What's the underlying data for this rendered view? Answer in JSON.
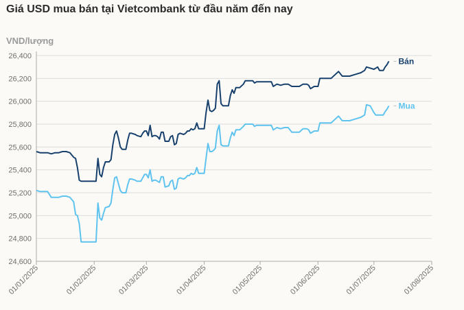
{
  "title": "Giá USD mua bán tại Vietcombank từ đầu năm đến nay",
  "colors": {
    "ban": "#17406d",
    "mua": "#5ec3ef",
    "grid": "#dcdcdc",
    "axis": "#aaaaaa"
  },
  "chart_data": {
    "type": "line",
    "title": "Giá USD mua bán tại Vietcombank từ đầu năm đến nay",
    "ylabel": "VND/lượng",
    "xlabel": "",
    "ylim": [
      24600,
      26400
    ],
    "yticks": [
      "24,600",
      "24,800",
      "25,000",
      "25,200",
      "25,400",
      "25,600",
      "25,800",
      "26,000",
      "26,200",
      "26,400"
    ],
    "xticks": [
      "01/01/2025",
      "01/02/2025",
      "01/03/2025",
      "01/04/2025",
      "01/05/2025",
      "01/06/2025",
      "01/07/2025",
      "01/08/2025"
    ],
    "grid": "horizontal",
    "series": [
      {
        "name": "Bán",
        "color": "#17406d",
        "points": [
          [
            "2025-01-01",
            25560
          ],
          [
            "2025-01-03",
            25550
          ],
          [
            "2025-01-05",
            25550
          ],
          [
            "2025-01-07",
            25550
          ],
          [
            "2025-01-09",
            25540
          ],
          [
            "2025-01-11",
            25550
          ],
          [
            "2025-01-13",
            25550
          ],
          [
            "2025-01-15",
            25560
          ],
          [
            "2025-01-17",
            25560
          ],
          [
            "2025-01-19",
            25550
          ],
          [
            "2025-01-21",
            25510
          ],
          [
            "2025-01-22",
            25500
          ],
          [
            "2025-01-23",
            25420
          ],
          [
            "2025-01-24",
            25310
          ],
          [
            "2025-01-25",
            25300
          ],
          [
            "2025-01-27",
            25300
          ],
          [
            "2025-01-29",
            25300
          ],
          [
            "2025-02-01",
            25300
          ],
          [
            "2025-02-02",
            25300
          ],
          [
            "2025-02-03",
            25500
          ],
          [
            "2025-02-04",
            25360
          ],
          [
            "2025-02-05",
            25340
          ],
          [
            "2025-02-06",
            25420
          ],
          [
            "2025-02-07",
            25470
          ],
          [
            "2025-02-09",
            25470
          ],
          [
            "2025-02-10",
            25490
          ],
          [
            "2025-02-11",
            25620
          ],
          [
            "2025-02-12",
            25710
          ],
          [
            "2025-02-13",
            25740
          ],
          [
            "2025-02-14",
            25680
          ],
          [
            "2025-02-15",
            25600
          ],
          [
            "2025-02-16",
            25580
          ],
          [
            "2025-02-18",
            25580
          ],
          [
            "2025-02-19",
            25660
          ],
          [
            "2025-02-20",
            25720
          ],
          [
            "2025-02-21",
            25720
          ],
          [
            "2025-02-23",
            25710
          ],
          [
            "2025-02-24",
            25700
          ],
          [
            "2025-02-26",
            25690
          ],
          [
            "2025-02-27",
            25720
          ],
          [
            "2025-02-28",
            25740
          ],
          [
            "2025-03-01",
            25740
          ],
          [
            "2025-03-02",
            25700
          ],
          [
            "2025-03-03",
            25790
          ],
          [
            "2025-03-04",
            25690
          ],
          [
            "2025-03-05",
            25700
          ],
          [
            "2025-03-06",
            25700
          ],
          [
            "2025-03-07",
            25690
          ],
          [
            "2025-03-08",
            25670
          ],
          [
            "2025-03-09",
            25730
          ],
          [
            "2025-03-10",
            25730
          ],
          [
            "2025-03-11",
            25650
          ],
          [
            "2025-03-13",
            25650
          ],
          [
            "2025-03-14",
            25690
          ],
          [
            "2025-03-15",
            25700
          ],
          [
            "2025-03-16",
            25620
          ],
          [
            "2025-03-17",
            25630
          ],
          [
            "2025-03-18",
            25710
          ],
          [
            "2025-03-19",
            25720
          ],
          [
            "2025-03-21",
            25710
          ],
          [
            "2025-03-22",
            25720
          ],
          [
            "2025-03-23",
            25740
          ],
          [
            "2025-03-24",
            25740
          ],
          [
            "2025-03-25",
            25760
          ],
          [
            "2025-03-26",
            25750
          ],
          [
            "2025-03-27",
            25760
          ],
          [
            "2025-03-28",
            25810
          ],
          [
            "2025-03-29",
            25760
          ],
          [
            "2025-03-30",
            25760
          ],
          [
            "2025-03-31",
            25760
          ],
          [
            "2025-04-01",
            25760
          ],
          [
            "2025-04-02",
            25900
          ],
          [
            "2025-04-03",
            26010
          ],
          [
            "2025-04-04",
            25920
          ],
          [
            "2025-04-05",
            25910
          ],
          [
            "2025-04-06",
            25920
          ],
          [
            "2025-04-07",
            25940
          ],
          [
            "2025-04-08",
            26150
          ],
          [
            "2025-04-09",
            26180
          ],
          [
            "2025-04-10",
            25980
          ],
          [
            "2025-04-11",
            25960
          ],
          [
            "2025-04-13",
            25960
          ],
          [
            "2025-04-14",
            25960
          ],
          [
            "2025-04-15",
            26050
          ],
          [
            "2025-04-16",
            26100
          ],
          [
            "2025-04-17",
            26070
          ],
          [
            "2025-04-18",
            26120
          ],
          [
            "2025-04-20",
            26120
          ],
          [
            "2025-04-22",
            26150
          ],
          [
            "2025-04-23",
            26180
          ],
          [
            "2025-04-24",
            26180
          ],
          [
            "2025-04-27",
            26180
          ],
          [
            "2025-04-28",
            26160
          ],
          [
            "2025-04-29",
            26170
          ],
          [
            "2025-05-01",
            26170
          ],
          [
            "2025-05-05",
            26170
          ],
          [
            "2025-05-07",
            26170
          ],
          [
            "2025-05-08",
            26130
          ],
          [
            "2025-05-09",
            26140
          ],
          [
            "2025-05-10",
            26150
          ],
          [
            "2025-05-12",
            26140
          ],
          [
            "2025-05-14",
            26150
          ],
          [
            "2025-05-16",
            26150
          ],
          [
            "2025-05-18",
            26130
          ],
          [
            "2025-05-20",
            26130
          ],
          [
            "2025-05-22",
            26130
          ],
          [
            "2025-05-24",
            26150
          ],
          [
            "2025-05-26",
            26150
          ],
          [
            "2025-05-27",
            26140
          ],
          [
            "2025-05-28",
            26110
          ],
          [
            "2025-05-30",
            26130
          ],
          [
            "2025-06-01",
            26130
          ],
          [
            "2025-06-02",
            26200
          ],
          [
            "2025-06-05",
            26200
          ],
          [
            "2025-06-08",
            26200
          ],
          [
            "2025-06-10",
            26230
          ],
          [
            "2025-06-12",
            26260
          ],
          [
            "2025-06-14",
            26220
          ],
          [
            "2025-06-16",
            26220
          ],
          [
            "2025-06-18",
            26220
          ],
          [
            "2025-06-20",
            26230
          ],
          [
            "2025-06-22",
            26240
          ],
          [
            "2025-06-24",
            26250
          ],
          [
            "2025-06-26",
            26270
          ],
          [
            "2025-06-27",
            26300
          ],
          [
            "2025-06-29",
            26290
          ],
          [
            "2025-07-01",
            26280
          ],
          [
            "2025-07-02",
            26290
          ],
          [
            "2025-07-03",
            26300
          ],
          [
            "2025-07-04",
            26270
          ],
          [
            "2025-07-06",
            26270
          ],
          [
            "2025-07-07",
            26300
          ],
          [
            "2025-07-08",
            26320
          ],
          [
            "2025-07-09",
            26350
          ]
        ]
      },
      {
        "name": "Mua",
        "color": "#5ec3ef",
        "points": [
          [
            "2025-01-01",
            25220
          ],
          [
            "2025-01-03",
            25210
          ],
          [
            "2025-01-05",
            25210
          ],
          [
            "2025-01-07",
            25210
          ],
          [
            "2025-01-09",
            25160
          ],
          [
            "2025-01-11",
            25160
          ],
          [
            "2025-01-13",
            25160
          ],
          [
            "2025-01-15",
            25170
          ],
          [
            "2025-01-17",
            25170
          ],
          [
            "2025-01-19",
            25160
          ],
          [
            "2025-01-21",
            25120
          ],
          [
            "2025-01-22",
            25010
          ],
          [
            "2025-01-23",
            25000
          ],
          [
            "2025-01-24",
            24930
          ],
          [
            "2025-01-25",
            24770
          ],
          [
            "2025-01-27",
            24770
          ],
          [
            "2025-01-29",
            24770
          ],
          [
            "2025-02-01",
            24770
          ],
          [
            "2025-02-02",
            24770
          ],
          [
            "2025-02-03",
            25110
          ],
          [
            "2025-02-04",
            24980
          ],
          [
            "2025-02-05",
            24960
          ],
          [
            "2025-02-06",
            25020
          ],
          [
            "2025-02-07",
            25070
          ],
          [
            "2025-02-09",
            25080
          ],
          [
            "2025-02-10",
            25110
          ],
          [
            "2025-02-11",
            25230
          ],
          [
            "2025-02-12",
            25330
          ],
          [
            "2025-02-13",
            25340
          ],
          [
            "2025-02-14",
            25280
          ],
          [
            "2025-02-15",
            25220
          ],
          [
            "2025-02-16",
            25200
          ],
          [
            "2025-02-18",
            25200
          ],
          [
            "2025-02-19",
            25270
          ],
          [
            "2025-02-20",
            25320
          ],
          [
            "2025-02-21",
            25320
          ],
          [
            "2025-02-23",
            25310
          ],
          [
            "2025-02-24",
            25300
          ],
          [
            "2025-02-26",
            25300
          ],
          [
            "2025-02-27",
            25330
          ],
          [
            "2025-02-28",
            25360
          ],
          [
            "2025-03-01",
            25360
          ],
          [
            "2025-03-02",
            25330
          ],
          [
            "2025-03-03",
            25400
          ],
          [
            "2025-03-04",
            25300
          ],
          [
            "2025-03-05",
            25310
          ],
          [
            "2025-03-06",
            25310
          ],
          [
            "2025-03-07",
            25300
          ],
          [
            "2025-03-08",
            25290
          ],
          [
            "2025-03-09",
            25340
          ],
          [
            "2025-03-10",
            25340
          ],
          [
            "2025-03-11",
            25250
          ],
          [
            "2025-03-13",
            25260
          ],
          [
            "2025-03-14",
            25300
          ],
          [
            "2025-03-15",
            25310
          ],
          [
            "2025-03-16",
            25230
          ],
          [
            "2025-03-17",
            25240
          ],
          [
            "2025-03-18",
            25320
          ],
          [
            "2025-03-19",
            25330
          ],
          [
            "2025-03-21",
            25320
          ],
          [
            "2025-03-22",
            25330
          ],
          [
            "2025-03-23",
            25350
          ],
          [
            "2025-03-24",
            25350
          ],
          [
            "2025-03-25",
            25370
          ],
          [
            "2025-03-26",
            25360
          ],
          [
            "2025-03-27",
            25370
          ],
          [
            "2025-03-28",
            25420
          ],
          [
            "2025-03-29",
            25370
          ],
          [
            "2025-03-30",
            25370
          ],
          [
            "2025-03-31",
            25370
          ],
          [
            "2025-04-01",
            25370
          ],
          [
            "2025-04-02",
            25500
          ],
          [
            "2025-04-03",
            25630
          ],
          [
            "2025-04-04",
            25560
          ],
          [
            "2025-04-05",
            25560
          ],
          [
            "2025-04-06",
            25570
          ],
          [
            "2025-04-07",
            25590
          ],
          [
            "2025-04-08",
            25740
          ],
          [
            "2025-04-09",
            25790
          ],
          [
            "2025-04-10",
            25620
          ],
          [
            "2025-04-11",
            25610
          ],
          [
            "2025-04-13",
            25610
          ],
          [
            "2025-04-14",
            25610
          ],
          [
            "2025-04-15",
            25680
          ],
          [
            "2025-04-16",
            25730
          ],
          [
            "2025-04-17",
            25700
          ],
          [
            "2025-04-18",
            25750
          ],
          [
            "2025-04-20",
            25750
          ],
          [
            "2025-04-22",
            25780
          ],
          [
            "2025-04-23",
            25800
          ],
          [
            "2025-04-24",
            25800
          ],
          [
            "2025-04-27",
            25800
          ],
          [
            "2025-04-28",
            25780
          ],
          [
            "2025-04-29",
            25790
          ],
          [
            "2025-05-01",
            25790
          ],
          [
            "2025-05-05",
            25790
          ],
          [
            "2025-05-07",
            25790
          ],
          [
            "2025-05-08",
            25750
          ],
          [
            "2025-05-09",
            25760
          ],
          [
            "2025-05-10",
            25770
          ],
          [
            "2025-05-12",
            25760
          ],
          [
            "2025-05-14",
            25770
          ],
          [
            "2025-05-16",
            25770
          ],
          [
            "2025-05-18",
            25730
          ],
          [
            "2025-05-20",
            25730
          ],
          [
            "2025-05-22",
            25730
          ],
          [
            "2025-05-24",
            25760
          ],
          [
            "2025-05-26",
            25760
          ],
          [
            "2025-05-27",
            25750
          ],
          [
            "2025-05-28",
            25720
          ],
          [
            "2025-05-30",
            25740
          ],
          [
            "2025-06-01",
            25740
          ],
          [
            "2025-06-02",
            25810
          ],
          [
            "2025-06-05",
            25810
          ],
          [
            "2025-06-08",
            25810
          ],
          [
            "2025-06-10",
            25840
          ],
          [
            "2025-06-12",
            25870
          ],
          [
            "2025-06-14",
            25830
          ],
          [
            "2025-06-16",
            25830
          ],
          [
            "2025-06-18",
            25830
          ],
          [
            "2025-06-20",
            25840
          ],
          [
            "2025-06-22",
            25850
          ],
          [
            "2025-06-24",
            25860
          ],
          [
            "2025-06-26",
            25880
          ],
          [
            "2025-06-27",
            25970
          ],
          [
            "2025-06-29",
            25960
          ],
          [
            "2025-07-01",
            25900
          ],
          [
            "2025-07-02",
            25880
          ],
          [
            "2025-07-03",
            25880
          ],
          [
            "2025-07-04",
            25880
          ],
          [
            "2025-07-06",
            25880
          ],
          [
            "2025-07-07",
            25910
          ],
          [
            "2025-07-08",
            25930
          ],
          [
            "2025-07-09",
            25960
          ]
        ]
      }
    ]
  }
}
